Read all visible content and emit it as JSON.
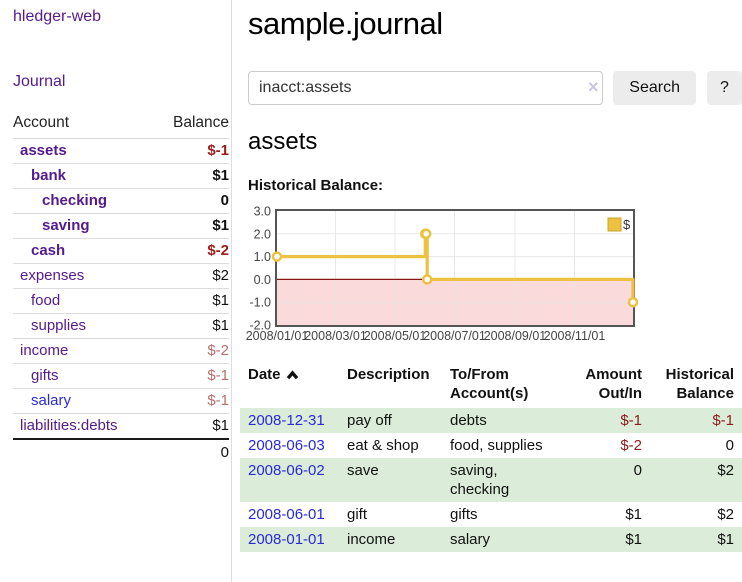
{
  "app": {
    "name": "hledger-web",
    "nav_journal": "Journal"
  },
  "sidebar": {
    "accounts_header": {
      "account": "Account",
      "balance": "Balance"
    },
    "rows": [
      {
        "name": "assets",
        "balance": "$-1",
        "level": 1,
        "bold": true,
        "neg": "strong"
      },
      {
        "name": "bank",
        "balance": "$1",
        "level": 2,
        "bold": true,
        "neg": "none"
      },
      {
        "name": "checking",
        "balance": "0",
        "level": 3,
        "bold": true,
        "neg": "none"
      },
      {
        "name": "saving",
        "balance": "$1",
        "level": 3,
        "bold": true,
        "neg": "none"
      },
      {
        "name": "cash",
        "balance": "$-2",
        "level": 2,
        "bold": true,
        "neg": "strong"
      },
      {
        "name": "expenses",
        "balance": "$2",
        "level": 1,
        "bold": false,
        "neg": "none"
      },
      {
        "name": "food",
        "balance": "$1",
        "level": 2,
        "bold": false,
        "neg": "none"
      },
      {
        "name": "supplies",
        "balance": "$1",
        "level": 2,
        "bold": false,
        "neg": "none"
      },
      {
        "name": "income",
        "balance": "$-2",
        "level": 1,
        "bold": false,
        "neg": "soft"
      },
      {
        "name": "gifts",
        "balance": "$-1",
        "level": 2,
        "bold": false,
        "neg": "soft"
      },
      {
        "name": "salary",
        "balance": "$-1",
        "level": 2,
        "bold": false,
        "neg": "soft",
        "link_blue": true
      },
      {
        "name": "liabilities:debts",
        "balance": "$1",
        "level": 1,
        "bold": false,
        "neg": "none"
      }
    ],
    "total": "0"
  },
  "header": {
    "title": "sample.journal"
  },
  "search": {
    "value": "inacct:assets",
    "clear_icon": "×",
    "button": "Search",
    "help_button": "?"
  },
  "account_page": {
    "heading": "assets",
    "chart_label": "Historical Balance:"
  },
  "chart_data": {
    "type": "line",
    "line_style": "step",
    "title": "Historical Balance:",
    "series": [
      {
        "name": "$",
        "color": "#edc240",
        "points": [
          [
            "2008-01-01",
            1
          ],
          [
            "2008-06-01",
            2
          ],
          [
            "2008-06-02",
            2
          ],
          [
            "2008-06-03",
            0
          ],
          [
            "2008-12-31",
            -1
          ]
        ]
      }
    ],
    "x_range": [
      "2008-01-01",
      "2008-12-31"
    ],
    "x_ticks": [
      "2008/01/01",
      "2008/03/01",
      "2008/05/01",
      "2008/07/01",
      "2008/09/01",
      "2008/11/01"
    ],
    "y_ticks": [
      "3.0",
      "2.0",
      "1.0",
      "0.0",
      "-1.0",
      "-2.0"
    ],
    "ylim": [
      -2,
      3
    ],
    "grid": true,
    "legend_position": "top-right",
    "negative_region_fill": "#fadada",
    "zero_line_color": "#8a1515",
    "grid_color": "#e6e6e6",
    "border_color": "#555555"
  },
  "register_table": {
    "columns": {
      "date": {
        "l1": "Date"
      },
      "desc": {
        "l1": "Description"
      },
      "tofrom": {
        "l1": "To/From",
        "l2": "Account(s)"
      },
      "amount": {
        "l1": "Amount",
        "l2": "Out/In"
      },
      "balance": {
        "l1": "Historical",
        "l2": "Balance"
      }
    },
    "rows": [
      {
        "date": "2008-12-31",
        "description": "pay off",
        "accounts": "debts",
        "amount": "$-1",
        "amount_neg": true,
        "balance": "$-1",
        "balance_neg": true
      },
      {
        "date": "2008-06-03",
        "description": "eat & shop",
        "accounts": "food, supplies",
        "amount": "$-2",
        "amount_neg": true,
        "balance": "0",
        "balance_neg": false
      },
      {
        "date": "2008-06-02",
        "description": "save",
        "accounts": "saving, checking",
        "amount": "0",
        "amount_neg": false,
        "balance": "$2",
        "balance_neg": false
      },
      {
        "date": "2008-06-01",
        "description": "gift",
        "accounts": "gifts",
        "amount": "$1",
        "amount_neg": false,
        "balance": "$2",
        "balance_neg": false
      },
      {
        "date": "2008-01-01",
        "description": "income",
        "accounts": "salary",
        "amount": "$1",
        "amount_neg": false,
        "balance": "$1",
        "balance_neg": false
      }
    ]
  }
}
